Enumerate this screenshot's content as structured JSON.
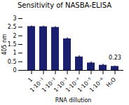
{
  "chart_data": {
    "type": "bar",
    "title": "Sensitivity of NASBA-ELISA",
    "xlabel": "RNA dillution",
    "ylabel": "405 nm",
    "categories": [
      "1",
      "1·10⁻¹",
      "1·10⁻²",
      "1·10⁻³",
      "1·10⁻⁴",
      "1·10⁻⁵",
      "1·10⁻⁶",
      "H₂O"
    ],
    "values": [
      2.54,
      2.53,
      2.49,
      1.83,
      0.78,
      0.43,
      0.3,
      0.23
    ],
    "errors": [
      0.04,
      0.04,
      0.05,
      0.06,
      0.07,
      0.07,
      0.06,
      0.03
    ],
    "color": "#1a1f6e",
    "ylim": [
      0,
      3
    ],
    "yticks": [
      0,
      0.5,
      1,
      1.5,
      2,
      2.5,
      3
    ],
    "annotations": [
      {
        "text": "0.23",
        "category": "H₂O",
        "value": 0.23
      }
    ],
    "grid": false
  }
}
